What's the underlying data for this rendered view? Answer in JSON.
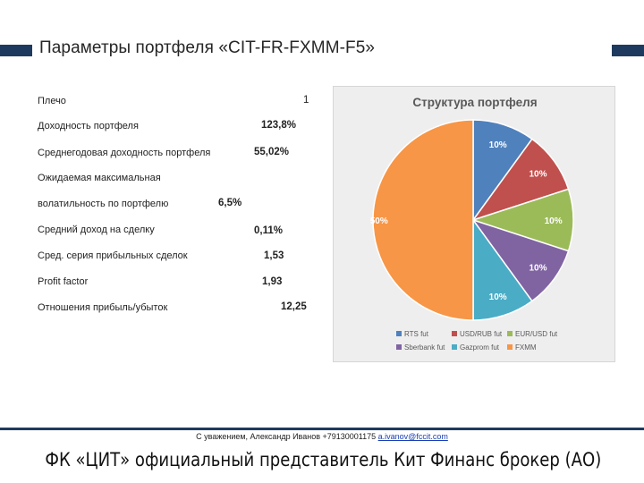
{
  "title": "Параметры портфеля «CIT-FR-FXMM-F5»",
  "params": [
    {
      "label": "Плечо",
      "value": "1"
    },
    {
      "label": "Доходность портфеля",
      "value": "123,8%"
    },
    {
      "label": "Среднегодовая доходность портфеля",
      "value": "55,02%"
    },
    {
      "label": "Ожидаемая максимальная",
      "value": ""
    },
    {
      "label": "волатильность по портфелю",
      "value": "6,5%"
    },
    {
      "label": "Средний доход на сделку",
      "value": "0,11%"
    },
    {
      "label": "Сред. серия прибыльных сделок",
      "value": "1,53"
    },
    {
      "label": "Profit factor",
      "value": "1,93"
    },
    {
      "label": "Отношения прибыль/убыток",
      "value": "12,25"
    }
  ],
  "chart_data": {
    "type": "pie",
    "title": "Структура портфеля",
    "legend_position": "bottom",
    "series": [
      {
        "name": "RTS fut",
        "value": 10,
        "label": "10%",
        "color": "#4f81bd"
      },
      {
        "name": "USD/RUB fut",
        "value": 10,
        "label": "10%",
        "color": "#c0504d"
      },
      {
        "name": "EUR/USD fut",
        "value": 10,
        "label": "10%",
        "color": "#9bbb59"
      },
      {
        "name": "Sberbank fut",
        "value": 10,
        "label": "10%",
        "color": "#8064a2"
      },
      {
        "name": "Gazprom fut",
        "value": 10,
        "label": "10%",
        "color": "#4bacc6"
      },
      {
        "name": "FXMM",
        "value": 50,
        "label": "50%",
        "color": "#f79646"
      }
    ]
  },
  "footer": {
    "text": "С уважением, Александр Иванов +79130001175 ",
    "email": "a.ivanov@fccit.com"
  },
  "slogan": "ФК «ЦИТ» официальный представитель Кит Финанс брокер (АО)"
}
